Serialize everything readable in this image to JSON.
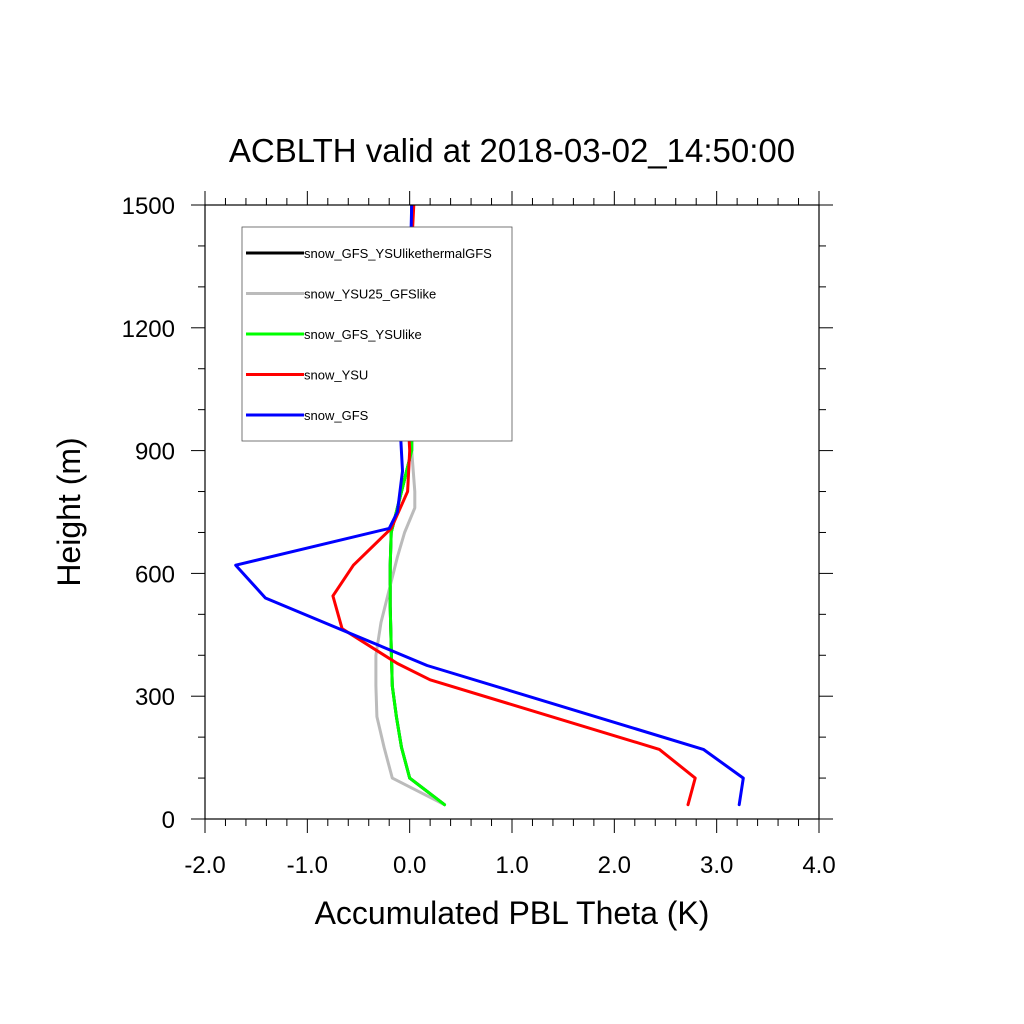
{
  "chart_data": {
    "type": "line",
    "title": "ACBLTH valid at 2018-03-02_14:50:00",
    "xlabel": "Accumulated PBL Theta (K)",
    "ylabel": "Height (m)",
    "xlim": [
      -2.0,
      4.0
    ],
    "ylim": [
      0,
      1500
    ],
    "xticks": [
      "-2.0",
      "-1.0",
      "0.0",
      "1.0",
      "2.0",
      "3.0",
      "4.0"
    ],
    "yticks": [
      "0",
      "300",
      "600",
      "900",
      "1200",
      "1500"
    ],
    "xtick_values": [
      -2,
      -1,
      0,
      1,
      2,
      3,
      4
    ],
    "ytick_values": [
      0,
      300,
      600,
      900,
      1200,
      1500
    ],
    "grid": false,
    "legend_position": "top-left",
    "series": [
      {
        "name": "snow_GFS_YSUlikethermalGFS",
        "color": "#000000",
        "points": [
          [
            0.34,
            35
          ],
          [
            0.0,
            100
          ],
          [
            -0.08,
            175
          ],
          [
            -0.13,
            250
          ],
          [
            -0.17,
            325
          ],
          [
            -0.18,
            420
          ],
          [
            -0.19,
            520
          ],
          [
            -0.19,
            620
          ],
          [
            -0.18,
            700
          ],
          [
            -0.08,
            800
          ],
          [
            0.02,
            900
          ],
          [
            0.02,
            1000
          ],
          [
            0.02,
            1100
          ],
          [
            0.02,
            1200
          ],
          [
            0.02,
            1300
          ],
          [
            0.02,
            1400
          ],
          [
            0.02,
            1500
          ]
        ]
      },
      {
        "name": "snow_YSU25_GFSlike",
        "color": "#bbbbbb",
        "points": [
          [
            0.34,
            35
          ],
          [
            -0.17,
            100
          ],
          [
            -0.25,
            175
          ],
          [
            -0.32,
            250
          ],
          [
            -0.33,
            325
          ],
          [
            -0.33,
            400
          ],
          [
            -0.28,
            480
          ],
          [
            -0.2,
            560
          ],
          [
            -0.12,
            640
          ],
          [
            -0.05,
            700
          ],
          [
            0.05,
            760
          ],
          [
            0.05,
            800
          ],
          [
            0.02,
            900
          ],
          [
            0.0,
            1000
          ],
          [
            0.0,
            1100
          ],
          [
            0.01,
            1200
          ],
          [
            0.02,
            1300
          ],
          [
            0.02,
            1400
          ],
          [
            0.03,
            1500
          ]
        ]
      },
      {
        "name": "snow_GFS_YSUlike",
        "color": "#00ff00",
        "points": [
          [
            0.34,
            35
          ],
          [
            0.0,
            100
          ],
          [
            -0.08,
            175
          ],
          [
            -0.13,
            250
          ],
          [
            -0.17,
            325
          ],
          [
            -0.18,
            420
          ],
          [
            -0.19,
            520
          ],
          [
            -0.19,
            620
          ],
          [
            -0.18,
            700
          ],
          [
            -0.08,
            800
          ],
          [
            0.02,
            900
          ],
          [
            0.02,
            1000
          ],
          [
            0.02,
            1100
          ],
          [
            0.02,
            1200
          ],
          [
            0.02,
            1300
          ],
          [
            0.02,
            1400
          ],
          [
            0.02,
            1500
          ]
        ]
      },
      {
        "name": "snow_YSU",
        "color": "#ff0000",
        "points": [
          [
            2.72,
            35
          ],
          [
            2.79,
            100
          ],
          [
            2.44,
            170
          ],
          [
            0.2,
            340
          ],
          [
            -0.12,
            380
          ],
          [
            -0.66,
            465
          ],
          [
            -0.75,
            545
          ],
          [
            -0.55,
            620
          ],
          [
            -0.18,
            710
          ],
          [
            -0.02,
            800
          ],
          [
            0.0,
            900
          ],
          [
            -0.02,
            1000
          ],
          [
            -0.01,
            1100
          ],
          [
            0.0,
            1200
          ],
          [
            0.01,
            1300
          ],
          [
            0.02,
            1400
          ],
          [
            0.04,
            1500
          ]
        ]
      },
      {
        "name": "snow_GFS",
        "color": "#0000ff",
        "points": [
          [
            3.22,
            35
          ],
          [
            3.26,
            100
          ],
          [
            2.87,
            170
          ],
          [
            0.17,
            375
          ],
          [
            -1.41,
            540
          ],
          [
            -1.7,
            620
          ],
          [
            -0.2,
            710
          ],
          [
            -0.12,
            750
          ],
          [
            -0.07,
            850
          ],
          [
            -0.1,
            990
          ],
          [
            -0.05,
            1100
          ],
          [
            -0.02,
            1200
          ],
          [
            0.0,
            1300
          ],
          [
            0.01,
            1400
          ],
          [
            0.02,
            1500
          ]
        ]
      }
    ]
  }
}
